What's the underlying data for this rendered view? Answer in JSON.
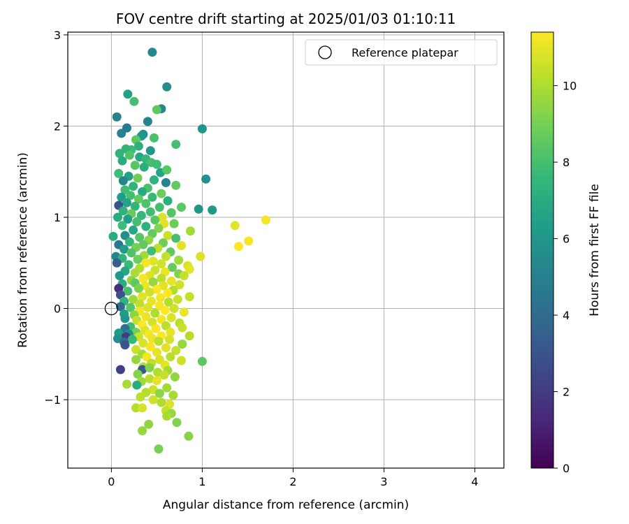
{
  "chart_data": {
    "type": "scatter",
    "title": "FOV centre drift starting at 2025/01/03 01:10:11",
    "xlabel": "Angular distance from reference (arcmin)",
    "ylabel": "Rotation from reference (arcmin)",
    "xlim": [
      -0.48,
      4.32
    ],
    "ylim": [
      -1.75,
      3.03
    ],
    "xticks": [
      0,
      1,
      2,
      3,
      4
    ],
    "xtick_labels": [
      "0",
      "1",
      "2",
      "3",
      "4"
    ],
    "yticks": [
      -1,
      0,
      1,
      2,
      3
    ],
    "ytick_labels": [
      "−1",
      "0",
      "1",
      "2",
      "3"
    ],
    "grid": true,
    "legend": {
      "position": "top-right",
      "entries": [
        "Reference platepar"
      ]
    },
    "colorbar": {
      "label": "Hours from first FF file",
      "colormap": "viridis",
      "range": [
        0,
        11.4
      ],
      "ticks": [
        0,
        2,
        4,
        6,
        8,
        10
      ],
      "tick_labels": [
        "0",
        "2",
        "4",
        "6",
        "8",
        "10"
      ],
      "stops": [
        "#440154",
        "#482878",
        "#3e4989",
        "#31688e",
        "#26828e",
        "#1f9e89",
        "#35b779",
        "#6ece58",
        "#b5de2b",
        "#fde725"
      ]
    },
    "reference_point": {
      "x": 0,
      "y": 0,
      "label": "Reference platepar"
    },
    "series": [
      {
        "points": [
          [
            0.45,
            2.81,
            5.4
          ],
          [
            0.61,
            2.43,
            5.6
          ],
          [
            0.18,
            2.35,
            6.5
          ],
          [
            0.25,
            2.27,
            8.0
          ],
          [
            0.55,
            2.19,
            5.4
          ],
          [
            0.5,
            2.18,
            8.5
          ],
          [
            0.06,
            2.1,
            5.0
          ],
          [
            0.4,
            2.05,
            5.2
          ],
          [
            0.17,
            1.98,
            4.7
          ],
          [
            1.0,
            1.97,
            5.9
          ],
          [
            0.11,
            1.92,
            5.0
          ],
          [
            0.35,
            1.91,
            5.5
          ],
          [
            0.33,
            1.89,
            6.0
          ],
          [
            0.47,
            1.87,
            8.1
          ],
          [
            0.27,
            1.85,
            8.5
          ],
          [
            0.71,
            1.8,
            8.0
          ],
          [
            0.43,
            1.73,
            6.0
          ],
          [
            0.3,
            1.78,
            7.2
          ],
          [
            0.22,
            1.74,
            7.7
          ],
          [
            0.16,
            1.75,
            7.5
          ],
          [
            0.09,
            1.7,
            7.4
          ],
          [
            0.2,
            1.68,
            8.2
          ],
          [
            0.31,
            1.66,
            6.8
          ],
          [
            0.38,
            1.64,
            7.6
          ],
          [
            0.44,
            1.6,
            8.0
          ],
          [
            0.12,
            1.62,
            7.0
          ],
          [
            0.5,
            1.58,
            7.8
          ],
          [
            0.26,
            1.57,
            8.4
          ],
          [
            0.36,
            1.55,
            7.1
          ],
          [
            0.54,
            1.49,
            6.6
          ],
          [
            0.08,
            1.48,
            7.8
          ],
          [
            0.61,
            1.52,
            8.4
          ],
          [
            0.19,
            1.45,
            6.5
          ],
          [
            1.04,
            1.42,
            5.8
          ],
          [
            0.13,
            1.4,
            5.2
          ],
          [
            0.29,
            1.43,
            8.9
          ],
          [
            0.47,
            1.41,
            7.3
          ],
          [
            0.6,
            1.38,
            5.3
          ],
          [
            0.71,
            1.35,
            8.6
          ],
          [
            0.24,
            1.34,
            7.5
          ],
          [
            0.4,
            1.32,
            8.1
          ],
          [
            0.15,
            1.3,
            7.9
          ],
          [
            0.34,
            1.28,
            6.9
          ],
          [
            0.55,
            1.26,
            8.8
          ],
          [
            0.21,
            1.24,
            8.0
          ],
          [
            0.11,
            1.22,
            6.3
          ],
          [
            0.45,
            1.22,
            7.7
          ],
          [
            0.3,
            1.2,
            8.6
          ],
          [
            0.62,
            1.18,
            7.2
          ],
          [
            0.17,
            1.16,
            6.6
          ],
          [
            0.08,
            1.13,
            3.0
          ],
          [
            0.38,
            1.15,
            8.2
          ],
          [
            0.26,
            1.12,
            7.5
          ],
          [
            0.53,
            1.11,
            8.0
          ],
          [
            0.77,
            1.11,
            8.5
          ],
          [
            0.96,
            1.09,
            6.0
          ],
          [
            1.11,
            1.08,
            6.1
          ],
          [
            0.13,
            1.07,
            7.3
          ],
          [
            0.43,
            1.06,
            7.9
          ],
          [
            0.66,
            1.05,
            8.3
          ],
          [
            0.22,
            1.04,
            8.7
          ],
          [
            0.33,
            1.02,
            7.6
          ],
          [
            0.07,
            1.0,
            7.0
          ],
          [
            0.56,
            1.0,
            10.8
          ],
          [
            0.18,
            0.98,
            6.4
          ],
          [
            0.48,
            0.97,
            8.4
          ],
          [
            0.28,
            0.95,
            8.0
          ],
          [
            0.69,
            0.93,
            8.8
          ],
          [
            0.58,
            0.93,
            10.9
          ],
          [
            0.12,
            0.91,
            7.8
          ],
          [
            0.38,
            0.9,
            7.2
          ],
          [
            1.7,
            0.97,
            11.2
          ],
          [
            1.36,
            0.91,
            10.9
          ],
          [
            0.87,
            0.85,
            9.8
          ],
          [
            0.52,
            0.88,
            9.2
          ],
          [
            0.24,
            0.86,
            6.8
          ],
          [
            0.45,
            0.82,
            8.6
          ],
          [
            0.62,
            0.8,
            10.5
          ],
          [
            0.02,
            0.79,
            7.0
          ],
          [
            0.15,
            0.8,
            5.5
          ],
          [
            0.31,
            0.78,
            8.3
          ],
          [
            0.71,
            0.77,
            8.0
          ],
          [
            0.41,
            0.75,
            9.5
          ],
          [
            1.51,
            0.74,
            11.3
          ],
          [
            0.2,
            0.73,
            7.6
          ],
          [
            0.57,
            0.72,
            8.9
          ],
          [
            0.08,
            0.7,
            4.5
          ],
          [
            0.35,
            0.7,
            8.6
          ],
          [
            0.77,
            0.69,
            10.9
          ],
          [
            1.4,
            0.68,
            11.4
          ],
          [
            0.27,
            0.67,
            9.0
          ],
          [
            0.51,
            0.66,
            10.3
          ],
          [
            0.14,
            0.65,
            6.2
          ],
          [
            0.44,
            0.63,
            7.9
          ],
          [
            0.65,
            0.62,
            8.6
          ],
          [
            0.22,
            0.61,
            8.2
          ],
          [
            0.05,
            0.57,
            5.3
          ],
          [
            0.36,
            0.58,
            9.8
          ],
          [
            0.98,
            0.57,
            10.8
          ],
          [
            0.6,
            0.57,
            10.4
          ],
          [
            0.12,
            0.55,
            7.4
          ],
          [
            0.29,
            0.54,
            8.8
          ],
          [
            0.74,
            0.53,
            9.8
          ],
          [
            0.46,
            0.52,
            10.9
          ],
          [
            0.06,
            0.5,
            3.5
          ],
          [
            0.38,
            0.5,
            11.2
          ],
          [
            0.55,
            0.49,
            10.6
          ],
          [
            0.19,
            0.48,
            7.7
          ],
          [
            0.84,
            0.47,
            10.8
          ],
          [
            0.67,
            0.45,
            8.7
          ],
          [
            0.31,
            0.44,
            10.1
          ],
          [
            0.86,
            0.43,
            11.0
          ],
          [
            0.48,
            0.42,
            10.5
          ],
          [
            0.15,
            0.41,
            6.7
          ],
          [
            0.59,
            0.4,
            11.1
          ],
          [
            0.26,
            0.39,
            9.9
          ],
          [
            0.74,
            0.38,
            9.2
          ],
          [
            0.09,
            0.36,
            6.1
          ],
          [
            0.42,
            0.36,
            10.8
          ],
          [
            0.8,
            0.36,
            10.4
          ],
          [
            0.35,
            0.33,
            11.3
          ],
          [
            0.55,
            0.33,
            10.2
          ],
          [
            0.22,
            0.31,
            9.5
          ],
          [
            0.66,
            0.3,
            11.0
          ],
          [
            0.46,
            0.29,
            9.6
          ],
          [
            0.12,
            0.27,
            7.0
          ],
          [
            0.26,
            0.28,
            8.5
          ],
          [
            0.75,
            0.26,
            10.6
          ],
          [
            0.37,
            0.25,
            11.1
          ],
          [
            0.57,
            0.25,
            10.9
          ],
          [
            0.08,
            0.22,
            1.5
          ],
          [
            0.3,
            0.22,
            9.1
          ],
          [
            0.5,
            0.21,
            11.3
          ],
          [
            0.68,
            0.2,
            10.1
          ],
          [
            0.18,
            0.19,
            8.0
          ],
          [
            0.42,
            0.18,
            10.6
          ],
          [
            0.62,
            0.17,
            11.4
          ],
          [
            0.1,
            0.15,
            2.8
          ],
          [
            0.86,
            0.13,
            10.4
          ],
          [
            0.34,
            0.13,
            10.9
          ],
          [
            0.54,
            0.12,
            11.2
          ],
          [
            0.24,
            0.1,
            9.7
          ],
          [
            0.73,
            0.1,
            10.5
          ],
          [
            0.14,
            0.08,
            7.4
          ],
          [
            0.44,
            0.08,
            11.0
          ],
          [
            0.63,
            0.07,
            10.1
          ],
          [
            0.31,
            0.05,
            10.3
          ],
          [
            0.53,
            0.03,
            11.3
          ],
          [
            0.1,
            0.02,
            4.0
          ],
          [
            0.21,
            0.01,
            8.3
          ],
          [
            0.4,
            0.01,
            10.8
          ],
          [
            0.69,
            0.0,
            10.6
          ],
          [
            0.59,
            -0.02,
            11.4
          ],
          [
            0.31,
            -0.03,
            11.2
          ],
          [
            0.8,
            -0.04,
            11.1
          ],
          [
            0.48,
            -0.05,
            10.0
          ],
          [
            0.14,
            -0.06,
            6.3
          ],
          [
            0.25,
            -0.07,
            9.4
          ],
          [
            0.38,
            -0.09,
            11.1
          ],
          [
            0.66,
            -0.1,
            10.8
          ],
          [
            0.15,
            -0.11,
            5.9
          ],
          [
            0.55,
            -0.12,
            11.2
          ],
          [
            0.28,
            -0.13,
            10.4
          ],
          [
            0.45,
            -0.15,
            10.7
          ],
          [
            0.75,
            -0.16,
            10.2
          ],
          [
            0.34,
            -0.18,
            11.4
          ],
          [
            0.6,
            -0.19,
            10.2
          ],
          [
            0.21,
            -0.2,
            7.8
          ],
          [
            0.15,
            -0.22,
            4.2
          ],
          [
            0.49,
            -0.22,
            11.3
          ],
          [
            0.78,
            -0.21,
            10.5
          ],
          [
            0.37,
            -0.24,
            10.8
          ],
          [
            0.27,
            -0.26,
            8.9
          ],
          [
            0.65,
            -0.26,
            11.0
          ],
          [
            0.08,
            -0.27,
            6.2
          ],
          [
            0.19,
            -0.28,
            5.5
          ],
          [
            0.41,
            -0.28,
            11.2
          ],
          [
            0.55,
            -0.3,
            11.4
          ],
          [
            0.16,
            -0.31,
            2.0
          ],
          [
            0.3,
            -0.31,
            10.5
          ],
          [
            0.86,
            -0.3,
            10.1
          ],
          [
            0.07,
            -0.33,
            5.7
          ],
          [
            0.45,
            -0.33,
            11.1
          ],
          [
            0.64,
            -0.34,
            10.7
          ],
          [
            0.23,
            -0.34,
            7.6
          ],
          [
            0.52,
            -0.36,
            10.2
          ],
          [
            0.14,
            -0.37,
            4.0
          ],
          [
            0.35,
            -0.38,
            10.8
          ],
          [
            0.78,
            -0.39,
            9.6
          ],
          [
            0.15,
            -0.4,
            3.0
          ],
          [
            0.43,
            -0.42,
            11.3
          ],
          [
            0.6,
            -0.43,
            10.9
          ],
          [
            0.27,
            -0.45,
            10.5
          ],
          [
            0.71,
            -0.46,
            10.4
          ],
          [
            0.5,
            -0.48,
            11.0
          ],
          [
            0.34,
            -0.5,
            9.8
          ],
          [
            0.39,
            -0.53,
            11.3
          ],
          [
            0.65,
            -0.53,
            10.2
          ],
          [
            0.27,
            -0.56,
            9.6
          ],
          [
            0.53,
            -0.56,
            10.7
          ],
          [
            0.77,
            -0.57,
            10.6
          ],
          [
            1.0,
            -0.58,
            8.5
          ],
          [
            0.44,
            -0.6,
            10.3
          ],
          [
            0.59,
            -0.62,
            11.0
          ],
          [
            0.35,
            -0.64,
            10.0
          ],
          [
            0.34,
            -0.67,
            3.1
          ],
          [
            0.1,
            -0.67,
            2.2
          ],
          [
            0.42,
            -0.65,
            9.3
          ],
          [
            0.62,
            -0.68,
            9.8
          ],
          [
            0.51,
            -0.7,
            10.1
          ],
          [
            0.29,
            -0.72,
            9.2
          ],
          [
            0.58,
            -0.73,
            10.4
          ],
          [
            0.7,
            -0.75,
            9.5
          ],
          [
            0.42,
            -0.77,
            10.2
          ],
          [
            0.5,
            -0.79,
            11.0
          ],
          [
            0.33,
            -0.8,
            9.7
          ],
          [
            0.17,
            -0.83,
            9.9
          ],
          [
            0.28,
            -0.84,
            7.0
          ],
          [
            0.61,
            -0.87,
            9.8
          ],
          [
            0.46,
            -0.89,
            10.5
          ],
          [
            0.38,
            -0.92,
            10.1
          ],
          [
            0.53,
            -0.93,
            9.4
          ],
          [
            0.68,
            -0.95,
            9.9
          ],
          [
            0.32,
            -0.97,
            10.3
          ],
          [
            0.46,
            -1.0,
            10.6
          ],
          [
            0.55,
            -1.03,
            10.0
          ],
          [
            0.64,
            -1.05,
            10.8
          ],
          [
            0.27,
            -1.09,
            10.1
          ],
          [
            0.34,
            -1.09,
            10.7
          ],
          [
            0.6,
            -1.12,
            10.4
          ],
          [
            0.66,
            -1.15,
            9.6
          ],
          [
            0.61,
            -1.18,
            9.9
          ],
          [
            0.72,
            -1.25,
            9.2
          ],
          [
            0.41,
            -1.27,
            9.5
          ],
          [
            0.34,
            -1.34,
            9.6
          ],
          [
            0.85,
            -1.4,
            9.3
          ],
          [
            0.52,
            -1.54,
            9.0
          ]
        ]
      }
    ]
  }
}
